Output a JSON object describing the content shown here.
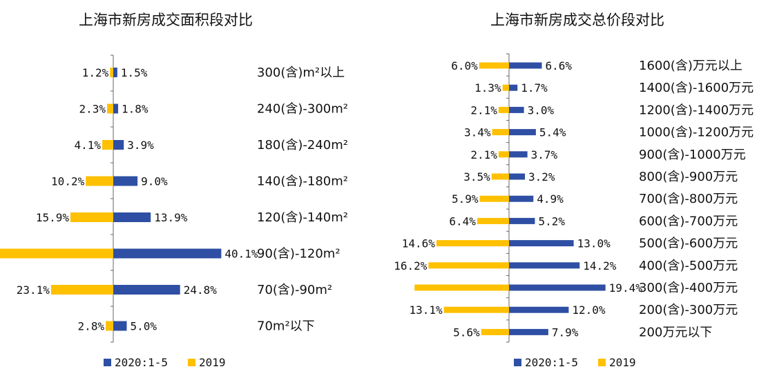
{
  "colors": {
    "series_2020": "#2E4FA3",
    "series_2019": "#FFC000",
    "axis": "#666666"
  },
  "chart_data": [
    {
      "type": "bar",
      "orientation": "horizontal-diverging",
      "title": "上海市新房成交面积段对比",
      "categories": [
        "300(含)m²以上",
        "240(含)-300m²",
        "180(含)-240m²",
        "140(含)-180m²",
        "120(含)-140m²",
        "90(含)-120m²",
        "70(含)-90m²",
        "70m²以下"
      ],
      "series": [
        {
          "name": "2020:1-5",
          "values": [
            1.5,
            1.8,
            3.9,
            9.0,
            13.9,
            40.1,
            24.8,
            5.0
          ],
          "labels": [
            "1.5%",
            "1.8%",
            "3.9%",
            "9.0%",
            "13.9%",
            "40.1%",
            "24.8%",
            "5.0%"
          ]
        },
        {
          "name": "2019",
          "values": [
            1.2,
            2.3,
            4.1,
            10.2,
            15.9,
            42.5,
            23.1,
            2.8
          ],
          "labels": [
            "1.2%",
            "2.3%",
            "4.1%",
            "10.2%",
            "15.9%",
            "",
            "23.1%",
            "2.8%"
          ]
        }
      ],
      "legend": [
        "2020:1-5",
        "2019"
      ]
    },
    {
      "type": "bar",
      "orientation": "horizontal-diverging",
      "title": "上海市新房成交总价段对比",
      "categories": [
        "1600(含)万元以上",
        "1400(含)-1600万元",
        "1200(含)-1400万元",
        "1000(含)-1200万元",
        "900(含)-1000万元",
        "800(含)-900万元",
        "700(含)-800万元",
        "600(含)-700万元",
        "500(含)-600万元",
        "400(含)-500万元",
        "300(含)-400万元",
        "200(含)-300万元",
        "200万元以下"
      ],
      "series": [
        {
          "name": "2020:1-5",
          "values": [
            6.6,
            1.7,
            3.0,
            5.4,
            3.7,
            3.2,
            4.9,
            5.2,
            13.0,
            14.2,
            19.4,
            12.0,
            7.9
          ],
          "labels": [
            "6.6%",
            "1.7%",
            "3.0%",
            "5.4%",
            "3.7%",
            "3.2%",
            "4.9%",
            "5.2%",
            "13.0%",
            "14.2%",
            "19.4%",
            "12.0%",
            "7.9%"
          ]
        },
        {
          "name": "2019",
          "values": [
            6.0,
            1.3,
            2.1,
            3.4,
            2.1,
            3.5,
            5.9,
            6.4,
            14.6,
            16.2,
            19.0,
            13.1,
            5.6
          ],
          "labels": [
            "6.0%",
            "1.3%",
            "2.1%",
            "3.4%",
            "2.1%",
            "3.5%",
            "5.9%",
            "6.4%",
            "14.6%",
            "16.2%",
            "",
            "13.1%",
            "5.6%"
          ]
        }
      ],
      "legend": [
        "2020:1-5",
        "2019"
      ]
    }
  ]
}
